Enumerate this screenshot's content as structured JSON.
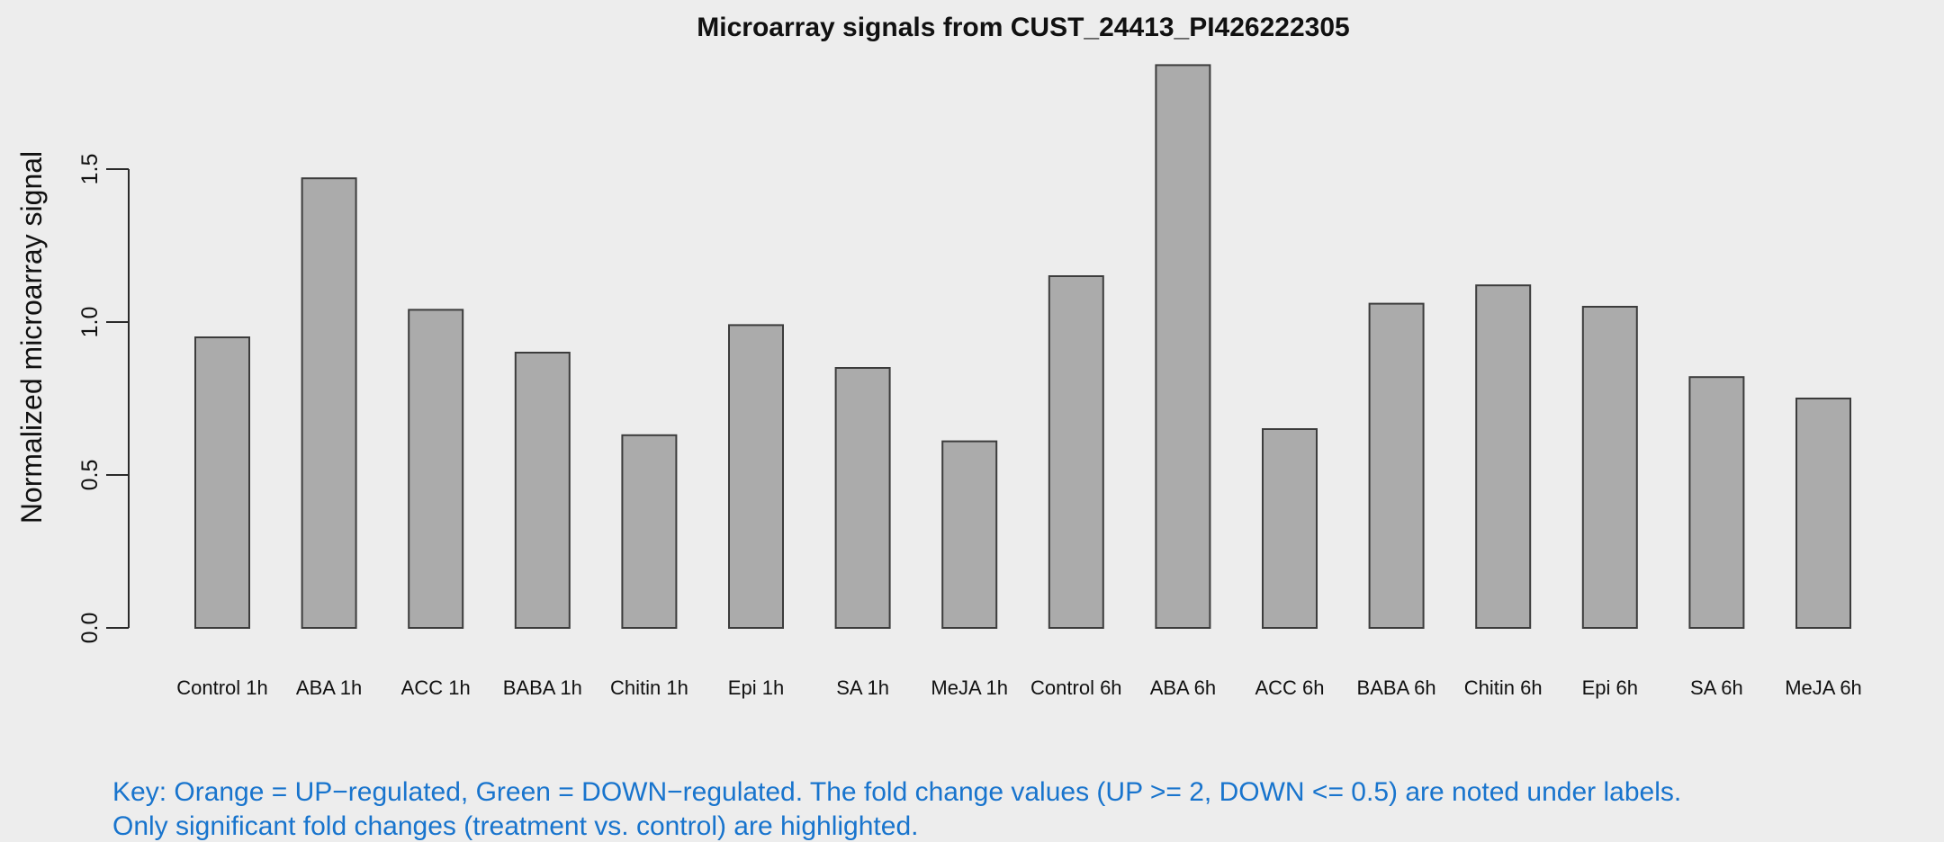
{
  "chart_data": {
    "type": "bar",
    "title": "Microarray signals from CUST_24413_PI426222305",
    "xlabel": "",
    "ylabel": "Normalized microarray signal",
    "categories": [
      "Control 1h",
      "ABA 1h",
      "ACC 1h",
      "BABA 1h",
      "Chitin 1h",
      "Epi 1h",
      "SA 1h",
      "MeJA 1h",
      "Control 6h",
      "ABA 6h",
      "ACC 6h",
      "BABA 6h",
      "Chitin 6h",
      "Epi 6h",
      "SA 6h",
      "MeJA 6h"
    ],
    "values": [
      0.95,
      1.47,
      1.04,
      0.9,
      0.63,
      0.99,
      0.85,
      0.61,
      1.15,
      1.84,
      0.65,
      1.06,
      1.12,
      1.05,
      0.82,
      0.75
    ],
    "yticks": [
      0.0,
      0.5,
      1.0,
      1.5
    ],
    "ytick_labels": [
      "0.0",
      "0.5",
      "1.0",
      "1.5"
    ],
    "ylim": [
      0,
      1.9
    ],
    "grid": false,
    "legend": "none",
    "bar_fill": "#ABABAB",
    "bar_stroke": "#3C3C3C",
    "background": "#EDEDED"
  },
  "footnote": {
    "line1": "Key: Orange = UP−regulated, Green = DOWN−regulated. The fold change values (UP >= 2, DOWN <= 0.5) are noted under labels.",
    "line2": "Only significant fold changes (treatment vs. control) are highlighted.",
    "color": "#1874CD"
  }
}
